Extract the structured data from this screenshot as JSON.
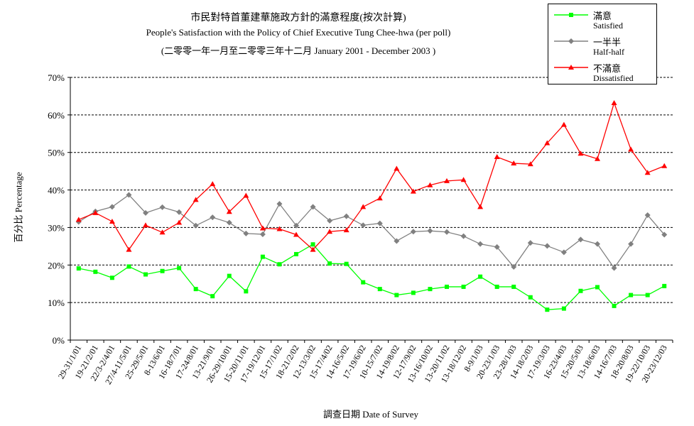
{
  "title_cn": "市民對特首董建華施政方針的滿意程度(按次計算)",
  "title_en": "People's Satisfaction with the Policy of Chief Executive Tung Chee-hwa (per poll)",
  "title_period": "(二零零一年一月至二零零三年十二月 January 2001 - December 2003 )",
  "ylabel": "百分比 Percentage",
  "xlabel": "調查日期 Date of Survey",
  "legend": {
    "satisfied_cn": "滿意",
    "satisfied_en": "Satisfied",
    "halfhalf_cn": "一半半",
    "halfhalf_en": "Half-half",
    "dissatisfied_cn": "不滿意",
    "dissatisfied_en": "Dissatisfied"
  },
  "colors": {
    "satisfied": "#00ff00",
    "halfhalf": "#808080",
    "dissatisfied": "#ff0000"
  },
  "chart_data": {
    "type": "line",
    "ylim": [
      0,
      70
    ],
    "yticks": [
      "0%",
      "10%",
      "20%",
      "30%",
      "40%",
      "50%",
      "60%",
      "70%"
    ],
    "grid": true,
    "legend_position": "top-right",
    "x": [
      "29-31/1/01",
      "19-21/2/01",
      "22/3-2/4/01",
      "27/4-11/5/01",
      "25-29/5/01",
      "8-13/6/01",
      "16-18/7/01",
      "17-24/8/01",
      "13-21/9/01",
      "26-29/10/01",
      "15-20/11/01",
      "17-19/12/01",
      "15-17/1/02",
      "18-21/2/02",
      "12-13/3/02",
      "15-17/4/02",
      "14-16/5/02",
      "17-19/6/02",
      "10-15/7/02",
      "14-19/8/02",
      "12-17/9/02",
      "13-16/10/02",
      "13-20/11/02",
      "13-18/12/02",
      "8-9/1/03",
      "20-23/1/03",
      "23-28/1/03",
      "14-18/2/03",
      "17-19/3/03",
      "16-23/4/03",
      "15-20/5/03",
      "13-18/6/03",
      "14-16/7/03",
      "18-20/8/03",
      "19-22/10/03",
      "20-23/12/03"
    ],
    "series": [
      {
        "name": "Satisfied",
        "values": [
          19.1,
          18.2,
          16.6,
          19.6,
          17.5,
          18.4,
          19.2,
          13.6,
          11.7,
          17.1,
          13.0,
          22.2,
          20.2,
          22.9,
          25.5,
          20.4,
          20.3,
          15.4,
          13.6,
          12.0,
          12.6,
          13.6,
          14.2,
          14.2,
          16.9,
          14.2,
          14.2,
          11.4,
          8.1,
          8.4,
          13.1,
          14.1,
          9.1,
          12.0,
          12.0,
          14.4
        ]
      },
      {
        "name": "Half-half",
        "values": [
          31.5,
          34.3,
          35.5,
          38.7,
          33.9,
          35.4,
          34.1,
          30.5,
          32.7,
          31.3,
          28.4,
          28.2,
          36.3,
          30.5,
          35.5,
          31.8,
          33.0,
          30.6,
          31.1,
          26.4,
          28.9,
          29.1,
          28.8,
          27.7,
          25.6,
          24.8,
          19.5,
          25.9,
          25.1,
          23.4,
          26.8,
          25.6,
          19.2,
          25.6,
          33.3,
          28.1
        ]
      },
      {
        "name": "Dissatisfied",
        "values": [
          32.1,
          33.9,
          31.6,
          24.1,
          30.6,
          28.7,
          31.3,
          37.4,
          41.6,
          34.2,
          38.5,
          29.8,
          29.6,
          28.1,
          24.1,
          28.9,
          29.3,
          35.5,
          37.8,
          45.7,
          39.6,
          41.3,
          42.4,
          42.7,
          35.5,
          48.8,
          47.1,
          46.9,
          52.5,
          57.4,
          49.7,
          48.3,
          63.2,
          50.8,
          44.6,
          46.4
        ]
      }
    ]
  }
}
